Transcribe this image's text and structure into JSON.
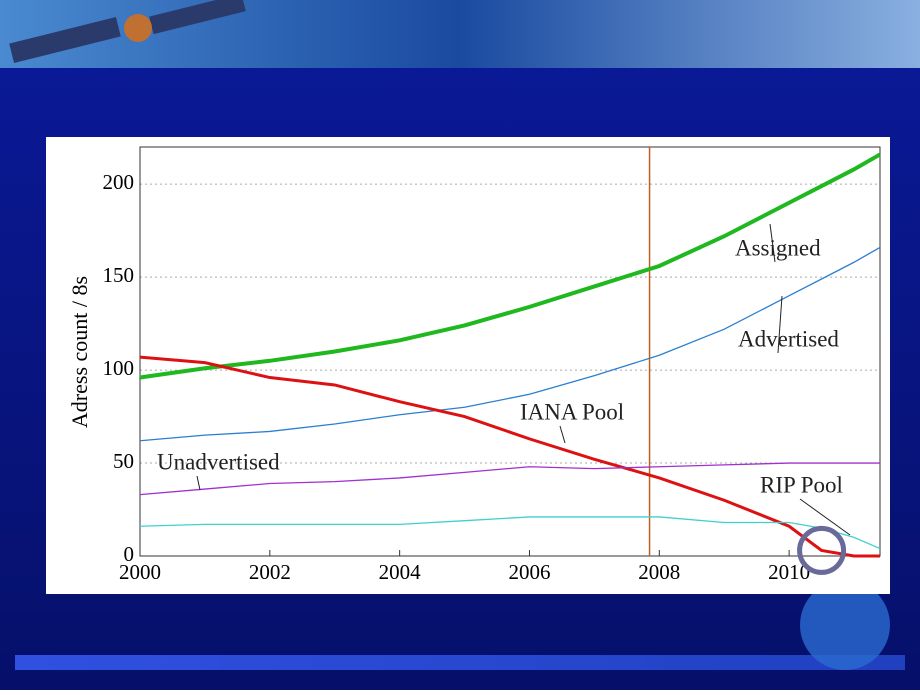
{
  "chart_data": {
    "type": "line",
    "ylabel": "Adress count / 8s",
    "x": [
      2000,
      2001,
      2002,
      2003,
      2004,
      2005,
      2006,
      2007,
      2008,
      2009,
      2010,
      2010.5,
      2011,
      2011.4
    ],
    "xlim": [
      2000,
      2011.4
    ],
    "ylim": [
      0,
      220
    ],
    "xticks": [
      2000,
      2002,
      2004,
      2006,
      2008,
      2010
    ],
    "yticks": [
      0,
      50,
      100,
      150,
      200
    ],
    "grid": true,
    "vline": 2007.85,
    "highlight": {
      "x": 2010.5,
      "y": 3
    },
    "series": [
      {
        "name": "Assigned",
        "color": "#1fb81f",
        "values": [
          96,
          101,
          105,
          110,
          116,
          124,
          134,
          145,
          156,
          172,
          190,
          199,
          208,
          216
        ]
      },
      {
        "name": "Advertised",
        "color": "#2a7fd0",
        "values": [
          62,
          65,
          67,
          71,
          76,
          80,
          87,
          97,
          108,
          122,
          140,
          149,
          158,
          166
        ]
      },
      {
        "name": "IANA Pool",
        "color": "#dd1111",
        "values": [
          107,
          104,
          96,
          92,
          83,
          75,
          63,
          52,
          42,
          30,
          16,
          3,
          0,
          0
        ]
      },
      {
        "name": "Unadvertised",
        "color": "#a030d0",
        "values": [
          33,
          36,
          39,
          40,
          42,
          45,
          48,
          47,
          48,
          49,
          50,
          50,
          50,
          50
        ]
      },
      {
        "name": "RIP Pool",
        "color": "#3fd0d0",
        "values": [
          16,
          17,
          17,
          17,
          17,
          19,
          21,
          21,
          21,
          18,
          18,
          15,
          10,
          4
        ]
      }
    ]
  }
}
